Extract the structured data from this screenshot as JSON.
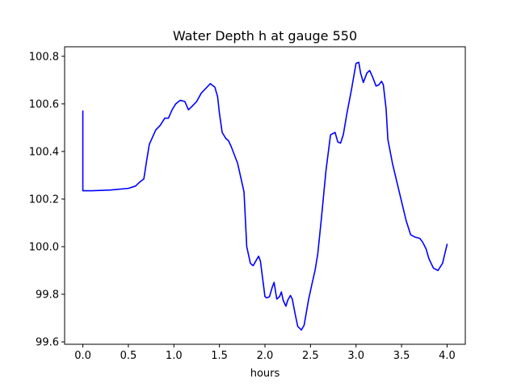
{
  "chart_data": {
    "type": "line",
    "title": "Water Depth h at gauge 550",
    "xlabel": "hours",
    "ylabel": "",
    "xlim": [
      -0.2,
      4.2
    ],
    "ylim": [
      99.59,
      100.84
    ],
    "x_ticks": [
      0.0,
      0.5,
      1.0,
      1.5,
      2.0,
      2.5,
      3.0,
      3.5,
      4.0
    ],
    "x_tick_labels": [
      "0.0",
      "0.5",
      "1.0",
      "1.5",
      "2.0",
      "2.5",
      "3.0",
      "3.5",
      "4.0"
    ],
    "y_ticks": [
      99.6,
      99.8,
      100.0,
      100.2,
      100.4,
      100.6,
      100.8
    ],
    "y_tick_labels": [
      "99.6",
      "99.8",
      "100.0",
      "100.2",
      "100.4",
      "100.6",
      "100.8"
    ],
    "grid": false,
    "series": [
      {
        "color": "#0000ff",
        "x": [
          0.0,
          0.0,
          0.1,
          0.3,
          0.5,
          0.58,
          0.62,
          0.67,
          0.7,
          0.73,
          0.8,
          0.85,
          0.9,
          0.94,
          0.98,
          1.02,
          1.07,
          1.12,
          1.16,
          1.2,
          1.25,
          1.3,
          1.35,
          1.4,
          1.45,
          1.48,
          1.5,
          1.53,
          1.57,
          1.6,
          1.63,
          1.7,
          1.77,
          1.8,
          1.84,
          1.87,
          1.9,
          1.93,
          1.95,
          1.98,
          2.0,
          2.02,
          2.05,
          2.08,
          2.1,
          2.13,
          2.16,
          2.18,
          2.2,
          2.23,
          2.25,
          2.28,
          2.3,
          2.33,
          2.36,
          2.4,
          2.43,
          2.48,
          2.52,
          2.55,
          2.58,
          2.62,
          2.67,
          2.72,
          2.77,
          2.8,
          2.83,
          2.86,
          2.9,
          2.95,
          3.0,
          3.03,
          3.05,
          3.08,
          3.12,
          3.15,
          3.18,
          3.22,
          3.25,
          3.28,
          3.3,
          3.33,
          3.35,
          3.4,
          3.45,
          3.5,
          3.55,
          3.6,
          3.65,
          3.7,
          3.73,
          3.77,
          3.8,
          3.85,
          3.9,
          3.95,
          4.0
        ],
        "y": [
          100.57,
          100.235,
          100.235,
          100.238,
          100.245,
          100.255,
          100.27,
          100.285,
          100.36,
          100.43,
          100.49,
          100.51,
          100.54,
          100.54,
          100.575,
          100.6,
          100.615,
          100.61,
          100.575,
          100.59,
          100.61,
          100.645,
          100.665,
          100.685,
          100.67,
          100.63,
          100.56,
          100.48,
          100.455,
          100.445,
          100.42,
          100.35,
          100.23,
          100.0,
          99.93,
          99.92,
          99.94,
          99.96,
          99.94,
          99.85,
          99.79,
          99.785,
          99.79,
          99.83,
          99.85,
          99.78,
          99.79,
          99.81,
          99.775,
          99.75,
          99.775,
          99.795,
          99.78,
          99.72,
          99.665,
          99.65,
          99.67,
          99.78,
          99.85,
          99.9,
          99.97,
          100.12,
          100.32,
          100.47,
          100.48,
          100.44,
          100.435,
          100.47,
          100.56,
          100.66,
          100.77,
          100.775,
          100.73,
          100.69,
          100.73,
          100.74,
          100.715,
          100.675,
          100.68,
          100.695,
          100.68,
          100.58,
          100.45,
          100.35,
          100.27,
          100.19,
          100.11,
          100.05,
          100.04,
          100.035,
          100.02,
          99.99,
          99.95,
          99.91,
          99.9,
          99.93,
          100.01
        ]
      }
    ]
  }
}
